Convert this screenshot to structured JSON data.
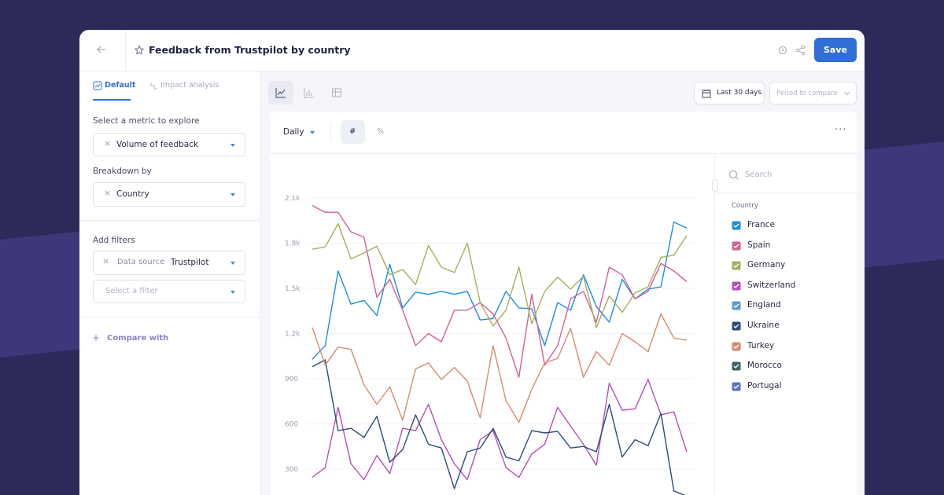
{
  "header": {
    "title": "Feedback from Trustpilot by country",
    "save": "Save"
  },
  "sidebar": {
    "tabs": [
      "Default",
      "Impact analysis"
    ],
    "metric_label": "Select a metric to explore",
    "metric_value": "Volume of feedback",
    "breakdown_label": "Breakdown by",
    "breakdown_value": "Country",
    "filters_label": "Add filters",
    "filter_key": "Data source",
    "filter_value": "Trustpilot",
    "filter_placeholder": "Select a filter",
    "compare": "Compare with"
  },
  "toolbar": {
    "date_range": "Last 30 days",
    "compare_placeholder": "Period to compare",
    "granularity": "Daily",
    "mode_count": "#",
    "mode_percent": "%"
  },
  "legend_panel": {
    "search_placeholder": "Search",
    "title": "Country"
  },
  "chart_data": {
    "type": "line",
    "categories": [
      null,
      null,
      null,
      null,
      null,
      null,
      null,
      null,
      null,
      null,
      null,
      null,
      null,
      null,
      null,
      null,
      null,
      null,
      null,
      null,
      null,
      null,
      null,
      null,
      null,
      null,
      null,
      null,
      null,
      null
    ],
    "ylim": [
      0,
      2200
    ],
    "yticks": [
      300,
      600,
      900,
      {
        "value": 1200,
        "label": "1.2k"
      },
      {
        "value": 1500,
        "label": "1.5k"
      },
      {
        "value": 1800,
        "label": "1.8k"
      },
      {
        "value": 2100,
        "label": "2.1k"
      }
    ],
    "grid": true,
    "series": [
      {
        "name": "France",
        "color": "#1a8fe3",
        "values": [
          1030,
          1120,
          1615,
          1395,
          1420,
          1320,
          1660,
          1370,
          1475,
          1460,
          1480,
          1460,
          1480,
          1290,
          1300,
          1480,
          1370,
          1365,
          1120,
          1405,
          1355,
          1590,
          1380,
          1275,
          1560,
          1430,
          1495,
          1510,
          1940,
          1900
        ]
      },
      {
        "name": "Spain",
        "color": "#d0609a",
        "values": [
          2050,
          2005,
          2005,
          1875,
          1840,
          1440,
          1560,
          1355,
          1120,
          1200,
          1145,
          1355,
          1355,
          1405,
          1330,
          1170,
          910,
          1460,
          990,
          1120,
          1430,
          1480,
          1275,
          1640,
          1590,
          1430,
          1480,
          1665,
          1615,
          1545
        ]
      },
      {
        "name": "Germany",
        "color": "#a9ad5c",
        "values": [
          1760,
          1775,
          1930,
          1695,
          1735,
          1780,
          1590,
          1625,
          1525,
          1785,
          1640,
          1605,
          1800,
          1405,
          1250,
          1355,
          1640,
          1265,
          1480,
          1575,
          1495,
          1580,
          1240,
          1450,
          1340,
          1470,
          1510,
          1705,
          1720,
          1850
        ]
      },
      {
        "name": "Switzerland",
        "color": "#b64fb8",
        "values": [
          245,
          310,
          710,
          335,
          230,
          390,
          270,
          570,
          555,
          730,
          495,
          335,
          230,
          495,
          555,
          310,
          245,
          400,
          465,
          710,
          585,
          465,
          325,
          870,
          690,
          700,
          895,
          660,
          680,
          415
        ]
      },
      {
        "name": "England",
        "color": "#5a9ccf",
        "values": [
          null,
          null,
          null,
          null,
          null,
          null,
          null,
          null,
          null,
          null,
          null,
          null,
          null,
          null,
          null,
          null,
          null,
          null,
          null,
          null,
          null,
          null,
          null,
          null,
          null,
          null,
          null,
          null,
          null,
          null
        ]
      },
      {
        "name": "Ukraine",
        "color": "#2f4a78",
        "values": [
          980,
          1025,
          555,
          570,
          510,
          650,
          345,
          430,
          660,
          465,
          440,
          170,
          415,
          440,
          570,
          380,
          355,
          555,
          540,
          550,
          440,
          450,
          415,
          730,
          380,
          495,
          455,
          670,
          155,
          120
        ]
      },
      {
        "name": "Turkey",
        "color": "#d98a6e",
        "values": [
          1240,
          990,
          1110,
          1095,
          860,
          730,
          845,
          625,
          965,
          1005,
          895,
          975,
          885,
          640,
          1120,
          755,
          610,
          830,
          1005,
          1035,
          1235,
          910,
          1080,
          990,
          1200,
          1145,
          1080,
          1330,
          1170,
          1155
        ]
      },
      {
        "name": "Morocco",
        "color": "#3e6260",
        "values": [
          null,
          null,
          null,
          null,
          null,
          null,
          null,
          null,
          null,
          null,
          null,
          null,
          null,
          null,
          null,
          null,
          null,
          null,
          null,
          null,
          null,
          null,
          null,
          null,
          null,
          null,
          null,
          null,
          null,
          null
        ]
      },
      {
        "name": "Portugal",
        "color": "#5a72c8",
        "values": [
          null,
          null,
          null,
          null,
          null,
          null,
          null,
          null,
          null,
          null,
          null,
          null,
          null,
          null,
          null,
          null,
          null,
          null,
          null,
          null,
          null,
          null,
          null,
          null,
          null,
          null,
          null,
          null,
          null,
          null
        ]
      }
    ]
  }
}
